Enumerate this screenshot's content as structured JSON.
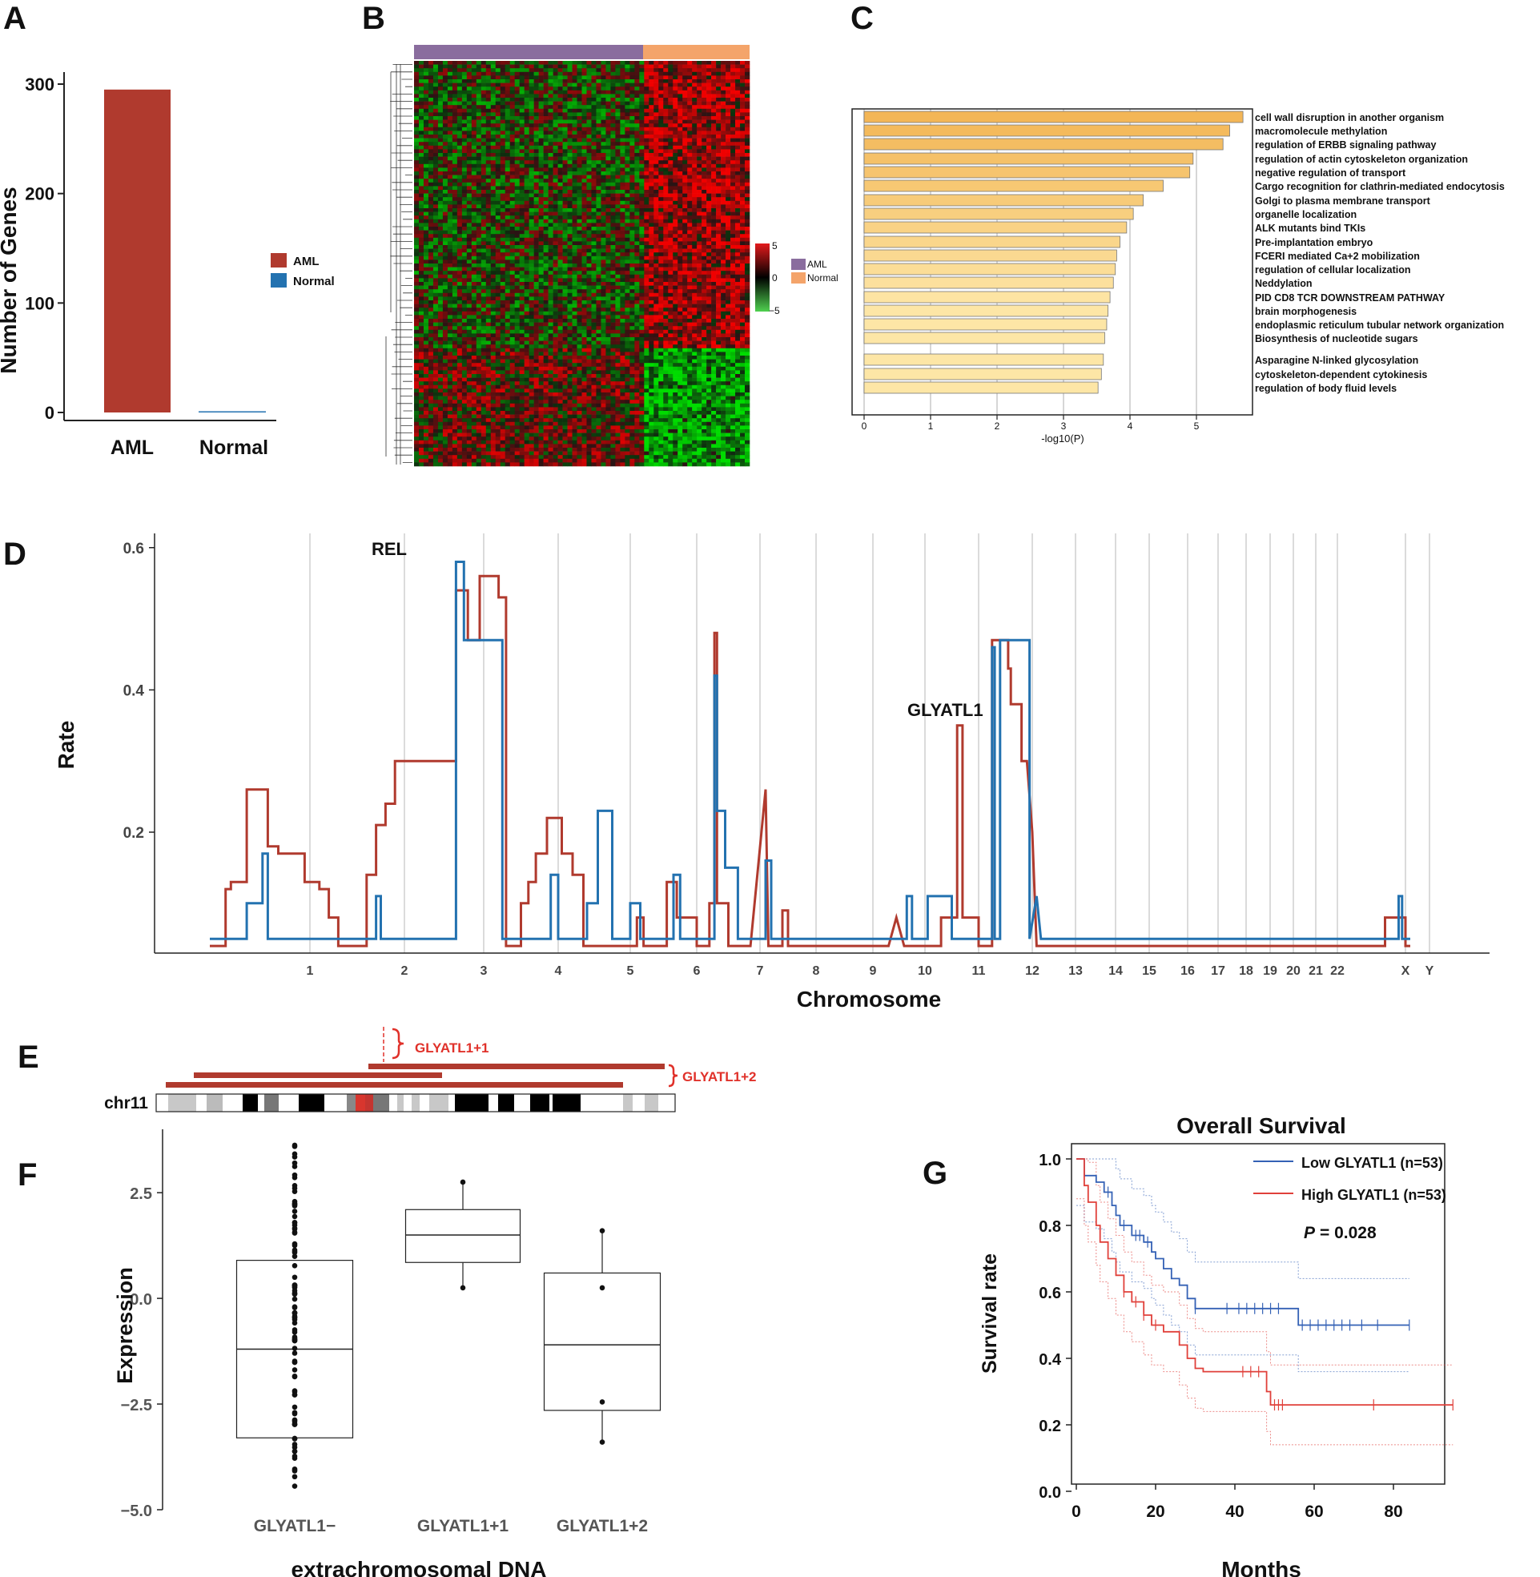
{
  "panels": {
    "A": "A",
    "B": "B",
    "C": "C",
    "D": "D",
    "E": "E",
    "F": "F",
    "G": "G"
  },
  "colors": {
    "aml": "#b03a2e",
    "normal": "#2372b0",
    "heat_aml": "#8a6d9e",
    "heat_normal": "#f4a46a",
    "bar_dark": "#f3b656",
    "bar_light": "#fde6a6",
    "red_label": "#e0312a",
    "ks_low": "#3461b5",
    "ks_high": "#e0403a"
  },
  "chart_data": [
    {
      "panel": "A",
      "type": "bar",
      "categories": [
        "AML",
        "Normal"
      ],
      "values": [
        295,
        1
      ],
      "ylabel": "Number of Genes",
      "yticks": [
        "0",
        "100",
        "200",
        "300"
      ],
      "ylim": [
        0,
        310
      ],
      "legend": [
        "AML",
        "Normal"
      ],
      "legend_position": "right"
    },
    {
      "panel": "B",
      "type": "heatmap",
      "groups": [
        "AML",
        "Normal"
      ],
      "scale_ticks": [
        "5",
        "0",
        "−5"
      ],
      "range": [
        -5,
        5
      ]
    },
    {
      "panel": "C",
      "type": "bar",
      "orientation": "horizontal",
      "xlabel": "-log10(P)",
      "xticks": [
        "0",
        "1",
        "2",
        "3",
        "4",
        "5"
      ],
      "xlim": [
        0,
        5.9
      ],
      "categories": [
        "cell wall disruption in another organism",
        "macromolecule methylation",
        "regulation of ERBB signaling pathway",
        "regulation of actin cytoskeleton organization",
        "negative regulation of transport",
        "Cargo recognition for clathrin-mediated endocytosis",
        "Golgi to plasma membrane transport",
        "organelle localization",
        "ALK mutants bind TKIs",
        "Pre-implantation embryo",
        "FCERI mediated Ca+2 mobilization",
        "regulation of cellular localization",
        "Neddylation",
        "PID CD8 TCR DOWNSTREAM PATHWAY",
        "brain morphogenesis",
        "endoplasmic reticulum tubular network organization",
        "Biosynthesis of nucleotide sugars",
        "Asparagine N-linked glycosylation",
        "cytoskeleton-dependent cytokinesis",
        "regulation of body fluid levels"
      ],
      "values": [
        5.7,
        5.5,
        5.4,
        4.95,
        4.9,
        4.5,
        4.2,
        4.05,
        3.95,
        3.85,
        3.8,
        3.78,
        3.75,
        3.7,
        3.67,
        3.65,
        3.62,
        3.6,
        3.57,
        3.52
      ]
    },
    {
      "panel": "D",
      "type": "line",
      "ylabel": "Rate",
      "xlabel": "Chromosome",
      "yticks": [
        "0.2",
        "0.4",
        "0.6"
      ],
      "ylim": [
        0.03,
        0.62
      ],
      "chromosomes": [
        "1",
        "2",
        "3",
        "4",
        "5",
        "6",
        "7",
        "8",
        "9",
        "10",
        "11",
        "12",
        "13",
        "14",
        "15",
        "16",
        "17",
        "18",
        "19",
        "20",
        "21",
        "22",
        "X",
        "Y"
      ],
      "annotations": [
        "REL",
        "GLYATL1"
      ],
      "series": [
        {
          "color": "aml",
          "points": [
            [
              0.05,
              0.04
            ],
            [
              0.2,
              0.04
            ],
            [
              0.2,
              0.12
            ],
            [
              0.25,
              0.12
            ],
            [
              0.25,
              0.13
            ],
            [
              0.4,
              0.13
            ],
            [
              0.4,
              0.26
            ],
            [
              0.6,
              0.26
            ],
            [
              0.6,
              0.18
            ],
            [
              0.7,
              0.18
            ],
            [
              0.7,
              0.17
            ],
            [
              0.95,
              0.17
            ],
            [
              0.95,
              0.13
            ],
            [
              1.1,
              0.13
            ],
            [
              1.1,
              0.12
            ],
            [
              1.2,
              0.12
            ],
            [
              1.2,
              0.08
            ],
            [
              1.3,
              0.08
            ],
            [
              1.3,
              0.04
            ],
            [
              1.6,
              0.04
            ],
            [
              1.6,
              0.14
            ],
            [
              1.7,
              0.14
            ],
            [
              1.7,
              0.21
            ],
            [
              1.8,
              0.21
            ],
            [
              1.8,
              0.24
            ],
            [
              1.9,
              0.24
            ],
            [
              1.9,
              0.3
            ],
            [
              2.1,
              0.3
            ],
            [
              2.1,
              0.3
            ],
            [
              2.65,
              0.3
            ],
            [
              2.65,
              0.54
            ],
            [
              2.8,
              0.54
            ],
            [
              2.8,
              0.47
            ],
            [
              2.95,
              0.47
            ],
            [
              2.95,
              0.56
            ],
            [
              3.2,
              0.56
            ],
            [
              3.2,
              0.53
            ],
            [
              3.3,
              0.53
            ],
            [
              3.3,
              0.04
            ],
            [
              3.5,
              0.04
            ],
            [
              3.5,
              0.1
            ],
            [
              3.6,
              0.1
            ],
            [
              3.6,
              0.13
            ],
            [
              3.7,
              0.13
            ],
            [
              3.7,
              0.17
            ],
            [
              3.85,
              0.17
            ],
            [
              3.85,
              0.22
            ],
            [
              4.05,
              0.22
            ],
            [
              4.05,
              0.17
            ],
            [
              4.2,
              0.17
            ],
            [
              4.2,
              0.14
            ],
            [
              4.35,
              0.14
            ],
            [
              4.35,
              0.04
            ],
            [
              5.1,
              0.04
            ],
            [
              5.1,
              0.08
            ],
            [
              5.2,
              0.08
            ],
            [
              5.2,
              0.04
            ],
            [
              5.55,
              0.04
            ],
            [
              5.55,
              0.13
            ],
            [
              5.7,
              0.13
            ],
            [
              5.7,
              0.08
            ],
            [
              6.0,
              0.08
            ],
            [
              6.0,
              0.04
            ],
            [
              6.2,
              0.04
            ],
            [
              6.2,
              0.1
            ],
            [
              6.28,
              0.1
            ],
            [
              6.28,
              0.48
            ],
            [
              6.32,
              0.48
            ],
            [
              6.32,
              0.1
            ],
            [
              6.5,
              0.1
            ],
            [
              6.5,
              0.04
            ],
            [
              6.85,
              0.04
            ],
            [
              7.1,
              0.26
            ],
            [
              7.15,
              0.04
            ],
            [
              7.4,
              0.04
            ],
            [
              7.4,
              0.09
            ],
            [
              7.5,
              0.09
            ],
            [
              7.5,
              0.04
            ],
            [
              9.3,
              0.04
            ],
            [
              9.45,
              0.08
            ],
            [
              9.6,
              0.04
            ],
            [
              10.3,
              0.04
            ],
            [
              10.3,
              0.08
            ],
            [
              10.6,
              0.08
            ],
            [
              10.6,
              0.35
            ],
            [
              10.7,
              0.35
            ],
            [
              10.7,
              0.08
            ],
            [
              11.0,
              0.08
            ],
            [
              11.0,
              0.04
            ],
            [
              11.25,
              0.04
            ],
            [
              11.25,
              0.47
            ],
            [
              11.55,
              0.47
            ],
            [
              11.55,
              0.43
            ],
            [
              11.6,
              0.43
            ],
            [
              11.6,
              0.38
            ],
            [
              11.8,
              0.38
            ],
            [
              11.8,
              0.3
            ],
            [
              11.9,
              0.3
            ],
            [
              12.0,
              0.2
            ],
            [
              12.1,
              0.04
            ],
            [
              22.7,
              0.04
            ],
            [
              22.7,
              0.08
            ],
            [
              23.0,
              0.08
            ],
            [
              23.0,
              0.04
            ],
            [
              23.2,
              0.04
            ]
          ]
        },
        {
          "color": "normal",
          "points": [
            [
              0.05,
              0.05
            ],
            [
              0.4,
              0.05
            ],
            [
              0.4,
              0.1
            ],
            [
              0.55,
              0.1
            ],
            [
              0.55,
              0.17
            ],
            [
              0.6,
              0.17
            ],
            [
              0.6,
              0.05
            ],
            [
              1.7,
              0.05
            ],
            [
              1.7,
              0.11
            ],
            [
              1.75,
              0.11
            ],
            [
              1.75,
              0.05
            ],
            [
              2.65,
              0.05
            ],
            [
              2.65,
              0.58
            ],
            [
              2.75,
              0.58
            ],
            [
              2.75,
              0.47
            ],
            [
              3.25,
              0.47
            ],
            [
              3.25,
              0.05
            ],
            [
              3.9,
              0.05
            ],
            [
              3.9,
              0.14
            ],
            [
              4.0,
              0.14
            ],
            [
              4.0,
              0.05
            ],
            [
              4.4,
              0.05
            ],
            [
              4.4,
              0.1
            ],
            [
              4.55,
              0.1
            ],
            [
              4.55,
              0.23
            ],
            [
              4.75,
              0.23
            ],
            [
              4.75,
              0.05
            ],
            [
              5.0,
              0.05
            ],
            [
              5.0,
              0.1
            ],
            [
              5.15,
              0.1
            ],
            [
              5.15,
              0.05
            ],
            [
              5.65,
              0.05
            ],
            [
              5.65,
              0.14
            ],
            [
              5.75,
              0.14
            ],
            [
              5.75,
              0.05
            ],
            [
              6.28,
              0.05
            ],
            [
              6.28,
              0.42
            ],
            [
              6.32,
              0.42
            ],
            [
              6.32,
              0.23
            ],
            [
              6.45,
              0.23
            ],
            [
              6.45,
              0.15
            ],
            [
              6.65,
              0.15
            ],
            [
              6.65,
              0.05
            ],
            [
              7.1,
              0.05
            ],
            [
              7.1,
              0.16
            ],
            [
              7.2,
              0.16
            ],
            [
              7.2,
              0.05
            ],
            [
              9.65,
              0.05
            ],
            [
              9.65,
              0.11
            ],
            [
              9.75,
              0.11
            ],
            [
              9.75,
              0.05
            ],
            [
              10.05,
              0.05
            ],
            [
              10.05,
              0.11
            ],
            [
              10.5,
              0.11
            ],
            [
              10.5,
              0.05
            ],
            [
              11.25,
              0.05
            ],
            [
              11.25,
              0.46
            ],
            [
              11.3,
              0.46
            ],
            [
              11.3,
              0.05
            ],
            [
              11.4,
              0.05
            ],
            [
              11.4,
              0.47
            ],
            [
              11.95,
              0.47
            ],
            [
              11.95,
              0.05
            ],
            [
              12.1,
              0.11
            ],
            [
              12.2,
              0.05
            ],
            [
              22.9,
              0.05
            ],
            [
              22.9,
              0.11
            ],
            [
              22.95,
              0.11
            ],
            [
              22.95,
              0.05
            ],
            [
              23.2,
              0.05
            ]
          ]
        }
      ]
    },
    {
      "panel": "F",
      "type": "box",
      "categories": [
        "GLYATL1−",
        "GLYATL1+1",
        "GLYATL1+2"
      ],
      "ylabel": "Expression",
      "xlabel": "extrachromosomal DNA",
      "yticks": [
        "−5.0",
        "−2.5",
        "0.0",
        "2.5"
      ],
      "ylim": [
        -5.0,
        4.0
      ],
      "boxes": [
        {
          "q1": -3.3,
          "median": -1.2,
          "q3": 0.9
        },
        {
          "q1": 0.85,
          "median": 1.5,
          "q3": 2.1,
          "whisker_low": 0.25,
          "whisker_high": 2.75
        },
        {
          "q1": -2.65,
          "median": -1.1,
          "q3": 0.6,
          "whisker_low": -3.4,
          "whisker_high": 1.6
        }
      ]
    },
    {
      "panel": "G",
      "type": "line",
      "title": "Overall Survival",
      "xlabel": "Months",
      "ylabel": "Survival rate",
      "xticks": [
        "0",
        "20",
        "40",
        "60",
        "80"
      ],
      "yticks": [
        "0.0",
        "0.2",
        "0.4",
        "0.6",
        "0.8",
        "1.0"
      ],
      "xlim": [
        0,
        97
      ],
      "ylim": [
        -0.05,
        1.05
      ],
      "pvalue_label": "P",
      "pvalue": "= 0.028",
      "series": [
        {
          "name": "Low GLYATL1 (n=53)",
          "color": "ks_low",
          "steps": [
            [
              0,
              1.0
            ],
            [
              2,
              0.95
            ],
            [
              5,
              0.93
            ],
            [
              7,
              0.9
            ],
            [
              9,
              0.86
            ],
            [
              10,
              0.83
            ],
            [
              11,
              0.8
            ],
            [
              14,
              0.77
            ],
            [
              17,
              0.75
            ],
            [
              19,
              0.72
            ],
            [
              20,
              0.7
            ],
            [
              22,
              0.67
            ],
            [
              24,
              0.64
            ],
            [
              26,
              0.62
            ],
            [
              28,
              0.58
            ],
            [
              30,
              0.55
            ],
            [
              55,
              0.55
            ],
            [
              56,
              0.5
            ],
            [
              84,
              0.5
            ]
          ]
        },
        {
          "name": "High GLYATL1 (n=53)",
          "color": "ks_high",
          "steps": [
            [
              0,
              1.0
            ],
            [
              2,
              0.92
            ],
            [
              3,
              0.87
            ],
            [
              5,
              0.8
            ],
            [
              6,
              0.75
            ],
            [
              8,
              0.7
            ],
            [
              10,
              0.65
            ],
            [
              12,
              0.6
            ],
            [
              14,
              0.57
            ],
            [
              17,
              0.53
            ],
            [
              19,
              0.5
            ],
            [
              22,
              0.48
            ],
            [
              26,
              0.44
            ],
            [
              28,
              0.4
            ],
            [
              30,
              0.37
            ],
            [
              32,
              0.36
            ],
            [
              47,
              0.36
            ],
            [
              48,
              0.3
            ],
            [
              49,
              0.26
            ],
            [
              95,
              0.26
            ]
          ]
        }
      ]
    }
  ],
  "panelE": {
    "chromosome": "chr11",
    "labels": [
      "GLYATL1+1",
      "GLYATL1+2"
    ]
  },
  "panelA_ticks": [
    "AML",
    "Normal"
  ]
}
